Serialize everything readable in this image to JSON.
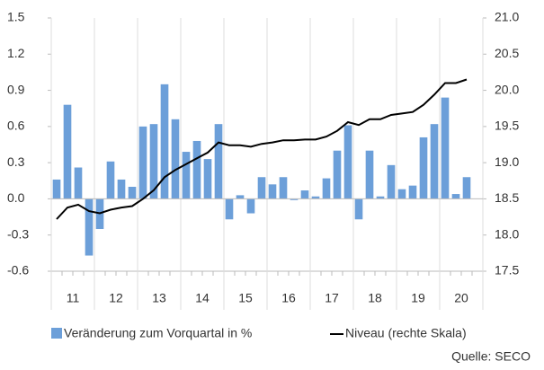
{
  "chart_data": {
    "type": "bar_line",
    "categories": [
      "11",
      null,
      null,
      null,
      "12",
      null,
      null,
      null,
      "13",
      null,
      null,
      null,
      "14",
      null,
      null,
      null,
      "15",
      null,
      null,
      null,
      "16",
      null,
      null,
      null,
      "17",
      null,
      null,
      null,
      "18",
      null,
      null,
      null,
      "19",
      null,
      null,
      null,
      "20",
      null,
      null,
      null
    ],
    "series": [
      {
        "name": "Veränderung zum Vorquartal in %",
        "type": "bar",
        "color": "#6c9fd9",
        "values": [
          0.16,
          0.78,
          0.26,
          -0.47,
          -0.25,
          0.31,
          0.16,
          0.1,
          0.6,
          0.62,
          0.95,
          0.66,
          0.39,
          0.48,
          0.33,
          0.62,
          -0.17,
          0.03,
          -0.12,
          0.18,
          0.12,
          0.18,
          -0.01,
          0.07,
          0.02,
          0.17,
          0.4,
          0.61,
          -0.17,
          0.4,
          0.02,
          0.28,
          0.08,
          0.11,
          0.51,
          0.62,
          0.84,
          0.04,
          0.18,
          null
        ]
      },
      {
        "name": "Niveau (rechte Skala)",
        "type": "line",
        "axis": "y2",
        "color": "#000000",
        "values": [
          18.22,
          18.38,
          18.42,
          18.33,
          18.3,
          18.35,
          18.38,
          18.4,
          18.5,
          18.62,
          18.8,
          18.9,
          18.98,
          19.06,
          19.14,
          19.28,
          19.24,
          19.24,
          19.22,
          19.26,
          19.28,
          19.31,
          19.31,
          19.32,
          19.32,
          19.36,
          19.44,
          19.56,
          19.52,
          19.6,
          19.6,
          19.66,
          19.68,
          19.7,
          19.8,
          19.94,
          20.1,
          20.1,
          20.15,
          null
        ]
      }
    ],
    "ylim": [
      -0.6,
      1.5
    ],
    "yticks": [
      1.5,
      1.2,
      {
        "value": 0.9,
        "label": "0.9"
      },
      0.6,
      0.3,
      {
        "value": 0,
        "label": "0.0"
      },
      -0.3,
      -0.6
    ],
    "y2lim": [
      17.5,
      21.0
    ],
    "y2ticks": [
      {
        "value": 21,
        "label": "21.0"
      },
      20.5,
      {
        "value": 20,
        "label": "20.0"
      },
      19.5,
      {
        "value": 19,
        "label": "19.0"
      },
      18.5,
      {
        "value": 18,
        "label": "18.0"
      },
      17.5
    ],
    "legend": "bottom",
    "source": "Quelle: SECO"
  }
}
